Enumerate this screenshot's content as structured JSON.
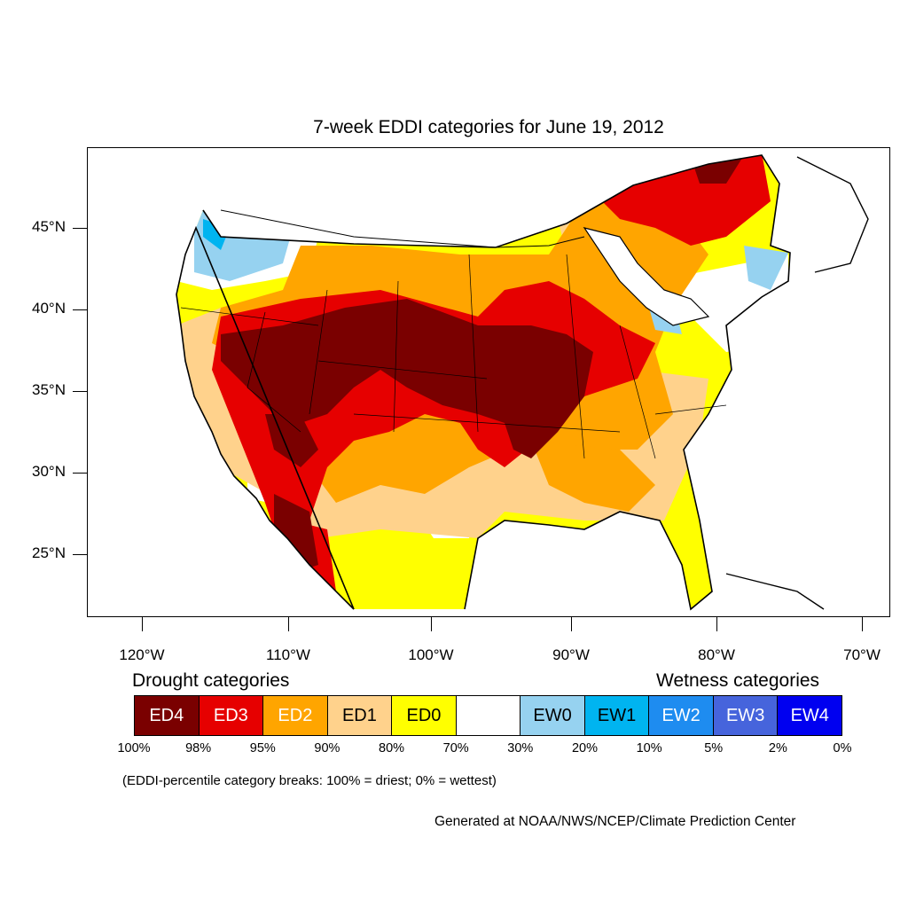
{
  "title": "7-week EDDI categories for June 19, 2012",
  "lat_labels": [
    "45°N",
    "40°N",
    "35°N",
    "30°N",
    "25°N"
  ],
  "lon_labels": [
    "120°W",
    "110°W",
    "100°W",
    "90°W",
    "80°W",
    "70°W"
  ],
  "legend": {
    "drought_heading": "Drought categories",
    "wetness_heading": "Wetness categories",
    "categories": [
      {
        "label": "ED4",
        "color": "#7a0000",
        "text_color": "#ffffff"
      },
      {
        "label": "ED3",
        "color": "#e60000",
        "text_color": "#ffffff"
      },
      {
        "label": "ED2",
        "color": "#ffa500",
        "text_color": "#ffffff"
      },
      {
        "label": "ED1",
        "color": "#ffd28c",
        "text_color": "#000000"
      },
      {
        "label": "ED0",
        "color": "#ffff00",
        "text_color": "#000000"
      },
      {
        "label": "",
        "color": "#ffffff",
        "text_color": "#000000"
      },
      {
        "label": "EW0",
        "color": "#96d2f0",
        "text_color": "#000000"
      },
      {
        "label": "EW1",
        "color": "#00b4f0",
        "text_color": "#000000"
      },
      {
        "label": "EW2",
        "color": "#1e8cf0",
        "text_color": "#ffffff"
      },
      {
        "label": "EW3",
        "color": "#4664dc",
        "text_color": "#ffffff"
      },
      {
        "label": "EW4",
        "color": "#0000f0",
        "text_color": "#ffffff"
      }
    ],
    "percentiles": [
      "100%",
      "98%",
      "95%",
      "90%",
      "80%",
      "70%",
      "30%",
      "20%",
      "10%",
      "5%",
      "2%",
      "0%"
    ]
  },
  "note": "(EDDI-percentile category breaks: 100% = driest; 0% = wettest)",
  "credit": "Generated at NOAA/NWS/NCEP/Climate Prediction Center"
}
